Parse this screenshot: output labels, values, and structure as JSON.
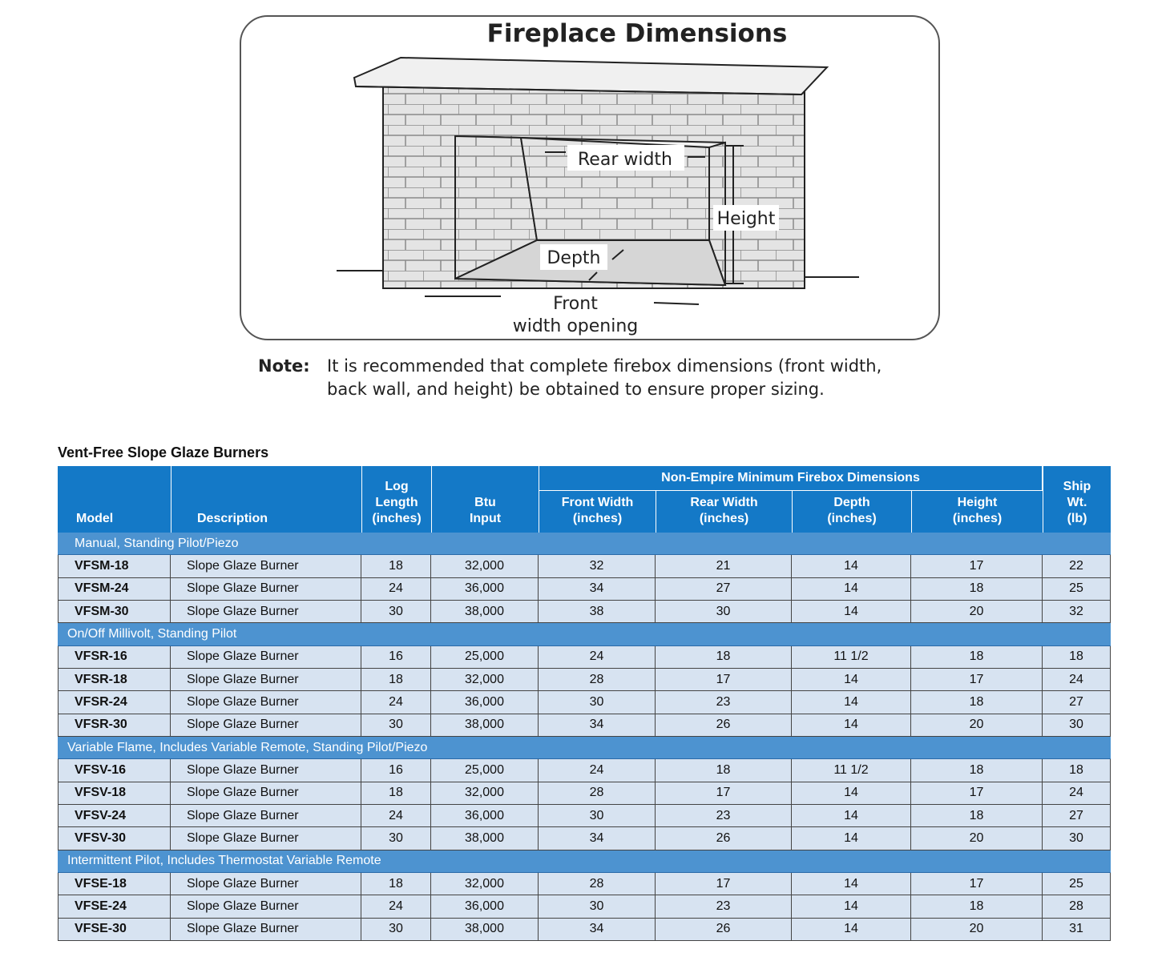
{
  "diagram": {
    "title": "Fireplace Dimensions",
    "labels": {
      "rear_width": "Rear width",
      "height": "Height",
      "depth": "Depth",
      "front_width": [
        "Front",
        "width opening"
      ]
    }
  },
  "note": {
    "label": "Note:",
    "lines": [
      "It is recommended that complete firebox dimensions (front width,",
      "back wall, and height) be obtained to ensure proper sizing."
    ]
  },
  "table": {
    "title": "Vent-Free Slope Glaze Burners",
    "header": {
      "span_label": "Non-Empire Minimum Firebox Dimensions",
      "columns": [
        {
          "lines": [
            "Model"
          ]
        },
        {
          "lines": [
            "Description"
          ]
        },
        {
          "lines": [
            "Log",
            "Length",
            "(inches)"
          ]
        },
        {
          "lines": [
            "Btu",
            "Input"
          ]
        },
        {
          "lines": [
            "Front Width",
            "(inches)"
          ]
        },
        {
          "lines": [
            "Rear Width",
            "(inches)"
          ]
        },
        {
          "lines": [
            "Depth",
            "(inches)"
          ]
        },
        {
          "lines": [
            "Height",
            "(inches)"
          ]
        },
        {
          "lines": [
            "Ship",
            "Wt.",
            "(lb)"
          ]
        }
      ]
    },
    "groups": [
      {
        "name": "Manual, Standing Pilot/Piezo",
        "rows": [
          [
            "VFSM-18",
            "Slope Glaze Burner",
            "18",
            "32,000",
            "32",
            "21",
            "14",
            "17",
            "22"
          ],
          [
            "VFSM-24",
            "Slope Glaze Burner",
            "24",
            "36,000",
            "34",
            "27",
            "14",
            "18",
            "25"
          ],
          [
            "VFSM-30",
            "Slope Glaze Burner",
            "30",
            "38,000",
            "38",
            "30",
            "14",
            "20",
            "32"
          ]
        ]
      },
      {
        "name": "On/Off Millivolt, Standing Pilot",
        "rows": [
          [
            "VFSR-16",
            "Slope Glaze Burner",
            "16",
            "25,000",
            "24",
            "18",
            "11 1/2",
            "18",
            "18"
          ],
          [
            "VFSR-18",
            "Slope Glaze Burner",
            "18",
            "32,000",
            "28",
            "17",
            "14",
            "17",
            "24"
          ],
          [
            "VFSR-24",
            "Slope Glaze Burner",
            "24",
            "36,000",
            "30",
            "23",
            "14",
            "18",
            "27"
          ],
          [
            "VFSR-30",
            "Slope Glaze Burner",
            "30",
            "38,000",
            "34",
            "26",
            "14",
            "20",
            "30"
          ]
        ]
      },
      {
        "name": "Variable Flame, Includes Variable Remote, Standing Pilot/Piezo",
        "rows": [
          [
            "VFSV-16",
            "Slope Glaze Burner",
            "16",
            "25,000",
            "24",
            "18",
            "11 1/2",
            "18",
            "18"
          ],
          [
            "VFSV-18",
            "Slope Glaze Burner",
            "18",
            "32,000",
            "28",
            "17",
            "14",
            "17",
            "24"
          ],
          [
            "VFSV-24",
            "Slope Glaze Burner",
            "24",
            "36,000",
            "30",
            "23",
            "14",
            "18",
            "27"
          ],
          [
            "VFSV-30",
            "Slope Glaze Burner",
            "30",
            "38,000",
            "34",
            "26",
            "14",
            "20",
            "30"
          ]
        ]
      },
      {
        "name": "Intermittent Pilot, Includes Thermostat Variable Remote",
        "rows": [
          [
            "VFSE-18",
            "Slope Glaze Burner",
            "18",
            "32,000",
            "28",
            "17",
            "14",
            "17",
            "25"
          ],
          [
            "VFSE-24",
            "Slope Glaze Burner",
            "24",
            "36,000",
            "30",
            "23",
            "14",
            "18",
            "28"
          ],
          [
            "VFSE-30",
            "Slope Glaze Burner",
            "30",
            "38,000",
            "34",
            "26",
            "14",
            "20",
            "31"
          ]
        ]
      }
    ]
  }
}
